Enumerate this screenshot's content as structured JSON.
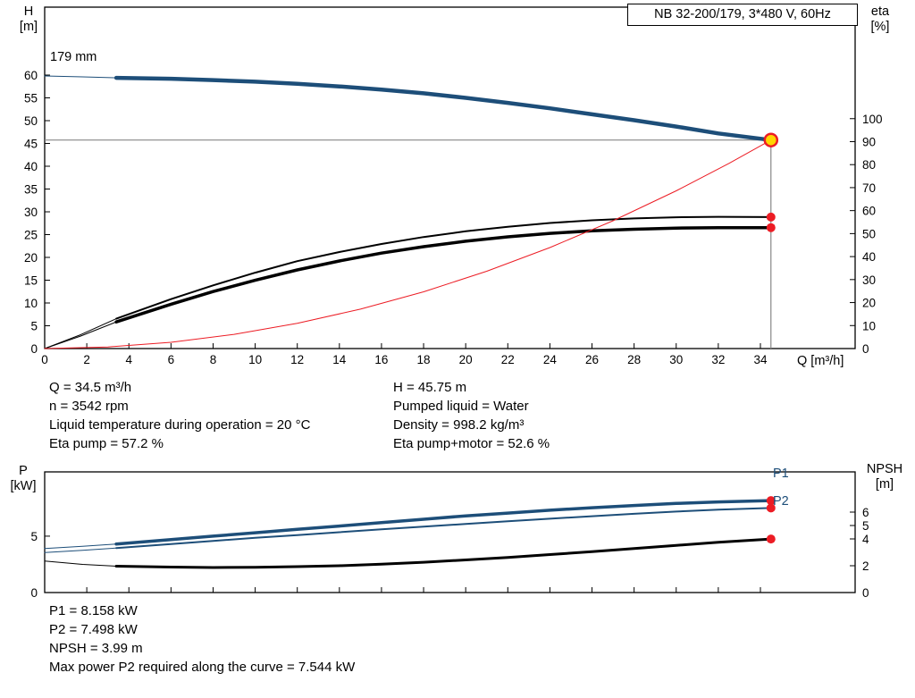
{
  "panel": {
    "title_box": "NB 32-200/179, 3*480 V, 60Hz",
    "impeller_label": "179 mm"
  },
  "axes_labels": {
    "h": "H\n[m]",
    "eta": "eta\n[%]",
    "q": "Q [m³/h]",
    "p": "P\n[kW]",
    "npsh": "NPSH\n[m]"
  },
  "curve_labels": {
    "p1": "P1",
    "p2": "P2"
  },
  "colors": {
    "curve_blue": "#1d4e79",
    "curve_red": "#ec1c24",
    "curve_black": "#000000",
    "ref_gray": "#878787",
    "duty_yellow": "#ffd500"
  },
  "operating_data": {
    "left": [
      "Q = 34.5 m³/h",
      "n = 3542 rpm",
      "Liquid temperature during operation = 20 °C",
      "Eta pump = 57.2 %"
    ],
    "right": [
      "H = 45.75 m",
      "Pumped liquid = Water",
      "Density = 998.2 kg/m³",
      "Eta pump+motor = 52.6 %"
    ]
  },
  "power_data": [
    "P1 = 8.158 kW",
    "P2 = 7.498 kW",
    "NPSH = 3.99 m",
    "Max power P2 required along the curve = 7.544 kW"
  ],
  "chart_data": [
    {
      "type": "line",
      "title": "NB 32-200/179, 3*480 V, 60Hz",
      "xlabel": "Q [m³/h]",
      "ylabel_left": "H [m]",
      "ylabel_right": "eta [%]",
      "x_range": [
        0,
        38.5
      ],
      "x_ticks": [
        0,
        2,
        4,
        6,
        8,
        10,
        12,
        14,
        16,
        18,
        20,
        22,
        24,
        26,
        28,
        30,
        32,
        34
      ],
      "y_left_range": [
        0,
        74.9
      ],
      "y_left_ticks": [
        0,
        5,
        10,
        15,
        20,
        25,
        30,
        35,
        40,
        45,
        50,
        55,
        60
      ],
      "y_right_range": [
        0,
        148.5
      ],
      "y_right_ticks": [
        0,
        10,
        20,
        30,
        40,
        50,
        60,
        70,
        80,
        90,
        100
      ],
      "duty_point": {
        "q": 34.5,
        "h": 45.75,
        "eta_pump": 57.2,
        "eta_pump_motor": 52.6
      },
      "reference_lines": [
        {
          "name": "duty-head-line",
          "orient": "h",
          "axis": "left",
          "value": 45.75,
          "from": 0,
          "to": 34.5,
          "color": "#878787",
          "width": 1.2
        },
        {
          "name": "duty-flow-line",
          "orient": "v",
          "axis": "left",
          "value": 34.5,
          "from": 0,
          "to": 45.75,
          "color": "#878787",
          "width": 1.2
        }
      ],
      "series": [
        {
          "name": "head-curve-lead",
          "axis": "left",
          "color": "#1d4e79",
          "width": 1,
          "points": [
            [
              0,
              59.8
            ],
            [
              1.8,
              59.6
            ],
            [
              3.4,
              59.4
            ]
          ]
        },
        {
          "name": "head-curve",
          "axis": "left",
          "color": "#1d4e79",
          "width": 4.5,
          "points": [
            [
              3.4,
              59.4
            ],
            [
              6,
              59.2
            ],
            [
              8,
              58.9
            ],
            [
              10,
              58.55
            ],
            [
              12,
              58.1
            ],
            [
              14,
              57.5
            ],
            [
              16,
              56.8
            ],
            [
              18,
              56.0
            ],
            [
              20,
              55.0
            ],
            [
              22,
              53.9
            ],
            [
              24,
              52.7
            ],
            [
              26,
              51.4
            ],
            [
              28,
              50.1
            ],
            [
              30,
              48.7
            ],
            [
              32,
              47.2
            ],
            [
              34.5,
              45.75
            ]
          ]
        },
        {
          "name": "eta-pump-curve-lead",
          "axis": "right",
          "color": "#000000",
          "width": 1,
          "points": [
            [
              0,
              0
            ],
            [
              1.7,
              6
            ],
            [
              3.4,
              13
            ]
          ]
        },
        {
          "name": "eta-pump-curve",
          "axis": "right",
          "color": "#000000",
          "width": 2,
          "points": [
            [
              3.4,
              13
            ],
            [
              6,
              21.5
            ],
            [
              8,
              27.5
            ],
            [
              10,
              33
            ],
            [
              12,
              38
            ],
            [
              14,
              42
            ],
            [
              16,
              45.5
            ],
            [
              18,
              48.5
            ],
            [
              20,
              51
            ],
            [
              22,
              53
            ],
            [
              24,
              54.6
            ],
            [
              26,
              55.8
            ],
            [
              28,
              56.6
            ],
            [
              30,
              57.1
            ],
            [
              32,
              57.3
            ],
            [
              34.5,
              57.2
            ]
          ]
        },
        {
          "name": "eta-pump-motor-curve-lead",
          "axis": "right",
          "color": "#000000",
          "width": 1,
          "points": [
            [
              0,
              0
            ],
            [
              1.7,
              5.4
            ],
            [
              3.4,
              11.6
            ]
          ]
        },
        {
          "name": "eta-pump-motor-curve",
          "axis": "right",
          "color": "#000000",
          "width": 3.5,
          "points": [
            [
              3.4,
              11.6
            ],
            [
              6,
              19.3
            ],
            [
              8,
              24.8
            ],
            [
              10,
              29.7
            ],
            [
              12,
              34.2
            ],
            [
              14,
              38.1
            ],
            [
              16,
              41.5
            ],
            [
              18,
              44.3
            ],
            [
              20,
              46.7
            ],
            [
              22,
              48.6
            ],
            [
              24,
              50.1
            ],
            [
              26,
              51.2
            ],
            [
              28,
              51.9
            ],
            [
              30,
              52.4
            ],
            [
              32,
              52.6
            ],
            [
              34.5,
              52.6
            ]
          ]
        },
        {
          "name": "system-curve",
          "axis": "left",
          "color": "#ec1c24",
          "width": 1,
          "points": [
            [
              0,
              0
            ],
            [
              3,
              0.35
            ],
            [
              6,
              1.38
            ],
            [
              9,
              3.11
            ],
            [
              12,
              5.54
            ],
            [
              15,
              8.65
            ],
            [
              18,
              12.46
            ],
            [
              21,
              16.96
            ],
            [
              24,
              22.15
            ],
            [
              27,
              28.03
            ],
            [
              30,
              34.61
            ],
            [
              32.5,
              40.61
            ],
            [
              34.5,
              45.75
            ]
          ]
        }
      ],
      "markers": [
        {
          "name": "eta-pump-point",
          "x": 34.5,
          "y": 57.2,
          "axis": "right",
          "r": 5,
          "fill": "#ec1c24"
        },
        {
          "name": "eta-pump-motor-point",
          "x": 34.5,
          "y": 52.6,
          "axis": "right",
          "r": 5,
          "fill": "#ec1c24"
        },
        {
          "name": "duty-point",
          "x": 34.5,
          "y": 45.75,
          "axis": "left",
          "r": 7,
          "fill": "#ffd500",
          "stroke": "#ec1c24",
          "stroke_width": 2.5
        }
      ]
    },
    {
      "type": "line",
      "ylabel_left": "P [kW]",
      "ylabel_right": "NPSH [m]",
      "x_range": [
        0,
        38.5
      ],
      "x_ticks": [
        0,
        2,
        4,
        6,
        8,
        10,
        12,
        14,
        16,
        18,
        20,
        22,
        24,
        26,
        28,
        30,
        32,
        34
      ],
      "y_left_range": [
        0,
        10.7
      ],
      "y_left_ticks": [
        0,
        5
      ],
      "y_right_range": [
        0,
        9
      ],
      "y_right_ticks": [
        0,
        2,
        4,
        5,
        6
      ],
      "reference_lines": [],
      "series": [
        {
          "name": "p1-curve-lead",
          "axis": "left",
          "color": "#1d4e79",
          "width": 1,
          "points": [
            [
              0,
              3.9
            ],
            [
              1.8,
              4.1
            ],
            [
              3.4,
              4.3
            ]
          ]
        },
        {
          "name": "p1-curve",
          "axis": "left",
          "color": "#1d4e79",
          "width": 3.5,
          "points": [
            [
              3.4,
              4.3
            ],
            [
              6,
              4.7
            ],
            [
              8,
              5.0
            ],
            [
              10,
              5.3
            ],
            [
              12,
              5.6
            ],
            [
              14,
              5.9
            ],
            [
              16,
              6.2
            ],
            [
              18,
              6.5
            ],
            [
              20,
              6.8
            ],
            [
              22,
              7.05
            ],
            [
              24,
              7.3
            ],
            [
              26,
              7.52
            ],
            [
              28,
              7.72
            ],
            [
              30,
              7.9
            ],
            [
              32,
              8.04
            ],
            [
              34.5,
              8.158
            ]
          ]
        },
        {
          "name": "p2-curve-lead",
          "axis": "left",
          "color": "#1d4e79",
          "width": 1,
          "points": [
            [
              0,
              3.55
            ],
            [
              1.8,
              3.75
            ],
            [
              3.4,
              3.95
            ]
          ]
        },
        {
          "name": "p2-curve",
          "axis": "left",
          "color": "#1d4e79",
          "width": 2,
          "points": [
            [
              3.4,
              3.95
            ],
            [
              6,
              4.3
            ],
            [
              8,
              4.58
            ],
            [
              10,
              4.85
            ],
            [
              12,
              5.1
            ],
            [
              14,
              5.35
            ],
            [
              16,
              5.6
            ],
            [
              18,
              5.85
            ],
            [
              20,
              6.08
            ],
            [
              22,
              6.32
            ],
            [
              24,
              6.55
            ],
            [
              26,
              6.77
            ],
            [
              28,
              6.98
            ],
            [
              30,
              7.18
            ],
            [
              32,
              7.35
            ],
            [
              34.5,
              7.498
            ]
          ]
        },
        {
          "name": "npsh-curve-lead",
          "axis": "right",
          "color": "#000000",
          "width": 1,
          "points": [
            [
              0,
              2.35
            ],
            [
              1.8,
              2.1
            ],
            [
              3.4,
              1.97
            ]
          ]
        },
        {
          "name": "npsh-curve",
          "axis": "right",
          "color": "#000000",
          "width": 3,
          "points": [
            [
              3.4,
              1.97
            ],
            [
              6,
              1.9
            ],
            [
              8,
              1.87
            ],
            [
              10,
              1.88
            ],
            [
              12,
              1.93
            ],
            [
              14,
              2.0
            ],
            [
              16,
              2.12
            ],
            [
              18,
              2.26
            ],
            [
              20,
              2.43
            ],
            [
              22,
              2.62
            ],
            [
              24,
              2.83
            ],
            [
              26,
              3.05
            ],
            [
              28,
              3.28
            ],
            [
              30,
              3.52
            ],
            [
              32,
              3.75
            ],
            [
              34.5,
              3.99
            ]
          ]
        }
      ],
      "markers": [
        {
          "name": "p1-point",
          "x": 34.5,
          "y": 8.158,
          "axis": "left",
          "r": 5,
          "fill": "#ec1c24"
        },
        {
          "name": "p2-point",
          "x": 34.5,
          "y": 7.498,
          "axis": "left",
          "r": 5,
          "fill": "#ec1c24"
        },
        {
          "name": "npsh-point",
          "x": 34.5,
          "y": 3.99,
          "axis": "right",
          "r": 5,
          "fill": "#ec1c24"
        }
      ]
    }
  ]
}
